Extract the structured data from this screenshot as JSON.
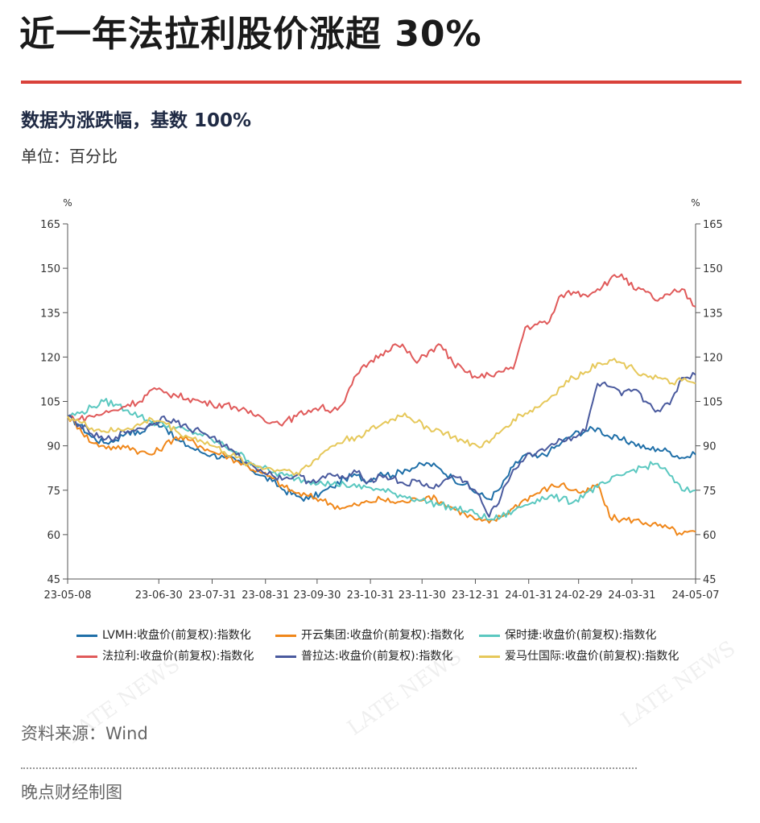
{
  "header": {
    "title": "近一年法拉利股价涨超 30%",
    "subtitle": "数据为涨跌幅，基数 100%",
    "unit": "单位：百分比"
  },
  "footer": {
    "source": "资料来源：Wind",
    "credit": "晚点财经制图"
  },
  "watermarks": [
    "LATE NEWS",
    "LATE NEWS",
    "LATE NEWS"
  ],
  "chart_data": {
    "type": "line",
    "title": "",
    "xlabel": "",
    "ylabel": "%",
    "y2label": "%",
    "ylim": [
      45,
      165
    ],
    "yticks": [
      45,
      60,
      75,
      90,
      105,
      120,
      135,
      150,
      165
    ],
    "xrange": [
      "2023-05-08",
      "2024-05-07"
    ],
    "xticks": [
      "23-05-08",
      "23-06-30",
      "23-07-31",
      "23-08-31",
      "23-09-30",
      "23-10-31",
      "23-11-30",
      "23-12-31",
      "24-01-31",
      "24-02-29",
      "24-03-31",
      "24-05-07"
    ],
    "xtick_days": [
      0,
      53,
      84,
      115,
      145,
      176,
      206,
      237,
      268,
      297,
      328,
      365
    ],
    "x_days": [
      0,
      7,
      14,
      21,
      28,
      35,
      42,
      49,
      56,
      63,
      70,
      77,
      84,
      91,
      98,
      105,
      112,
      119,
      126,
      133,
      140,
      147,
      154,
      161,
      168,
      175,
      182,
      189,
      196,
      203,
      210,
      217,
      224,
      231,
      238,
      245,
      252,
      259,
      266,
      273,
      280,
      287,
      294,
      301,
      308,
      315,
      322,
      329,
      336,
      343,
      350,
      357,
      365
    ],
    "series": [
      {
        "name": "LVMH:收盘价(前复权):指数化",
        "color": "#1f6fa8",
        "values": [
          100,
          97,
          93,
          91,
          92,
          95,
          94,
          98,
          97,
          92,
          90,
          88,
          87,
          86,
          85,
          83,
          80,
          78,
          75,
          73,
          72,
          74,
          76,
          79,
          80,
          78,
          81,
          80,
          82,
          83,
          84,
          82,
          79,
          77,
          74,
          72,
          76,
          83,
          87,
          86,
          88,
          91,
          94,
          95,
          96,
          93,
          92,
          91,
          89,
          89,
          88,
          86,
          87
        ]
      },
      {
        "name": "开云集团:收盘价(前复权):指数化",
        "color": "#f0871a",
        "values": [
          100,
          96,
          91,
          90,
          89,
          90,
          88,
          87,
          90,
          93,
          92,
          90,
          88,
          87,
          85,
          83,
          81,
          79,
          76,
          74,
          73,
          72,
          70,
          69,
          70,
          71,
          72,
          71,
          71,
          72,
          73,
          71,
          69,
          67,
          65,
          64,
          66,
          69,
          72,
          74,
          76,
          77,
          75,
          74,
          77,
          66,
          65,
          65,
          64,
          63,
          62,
          60,
          61
        ]
      },
      {
        "name": "保时捷:收盘价(前复权):指数化",
        "color": "#5bc8c0",
        "values": [
          100,
          101,
          103,
          105,
          104,
          102,
          100,
          98,
          97,
          96,
          95,
          94,
          92,
          90,
          88,
          85,
          83,
          81,
          80,
          79,
          78,
          78,
          77,
          77,
          76,
          76,
          75,
          74,
          73,
          72,
          71,
          70,
          69,
          68,
          67,
          65,
          66,
          68,
          70,
          72,
          73,
          72,
          71,
          74,
          76,
          78,
          80,
          82,
          83,
          84,
          80,
          75,
          75
        ]
      },
      {
        "name": "法拉利:收盘价(前复权):指数化",
        "color": "#e05a5a",
        "values": [
          100,
          99,
          100,
          101,
          102,
          104,
          105,
          109,
          108,
          107,
          106,
          105,
          104,
          104,
          103,
          101,
          100,
          98,
          98,
          100,
          102,
          103,
          102,
          105,
          114,
          118,
          121,
          124,
          123,
          118,
          122,
          124,
          118,
          115,
          113,
          114,
          115,
          116,
          130,
          131,
          132,
          141,
          142,
          141,
          143,
          146,
          148,
          143,
          142,
          139,
          141,
          143,
          137
        ]
      },
      {
        "name": "普拉达:收盘价(前复权):指数化",
        "color": "#4a5a9e",
        "values": [
          100,
          97,
          94,
          92,
          93,
          95,
          96,
          97,
          100,
          98,
          96,
          95,
          93,
          90,
          87,
          84,
          82,
          80,
          79,
          80,
          78,
          79,
          80,
          79,
          81,
          78,
          80,
          79,
          77,
          78,
          76,
          77,
          80,
          78,
          74,
          66,
          73,
          82,
          86,
          88,
          90,
          92,
          93,
          95,
          111,
          110,
          107,
          109,
          105,
          102,
          104,
          113,
          114
        ]
      },
      {
        "name": "爱马仕国际:收盘价(前复权):指数化",
        "color": "#e6c85a",
        "values": [
          100,
          98,
          96,
          95,
          95,
          96,
          97,
          99,
          98,
          95,
          93,
          92,
          90,
          88,
          86,
          84,
          83,
          82,
          82,
          81,
          83,
          87,
          90,
          92,
          93,
          95,
          97,
          99,
          101,
          98,
          96,
          95,
          93,
          91,
          90,
          91,
          95,
          99,
          101,
          103,
          106,
          110,
          113,
          115,
          118,
          119,
          118,
          116,
          114,
          113,
          111,
          112,
          111
        ]
      }
    ]
  }
}
